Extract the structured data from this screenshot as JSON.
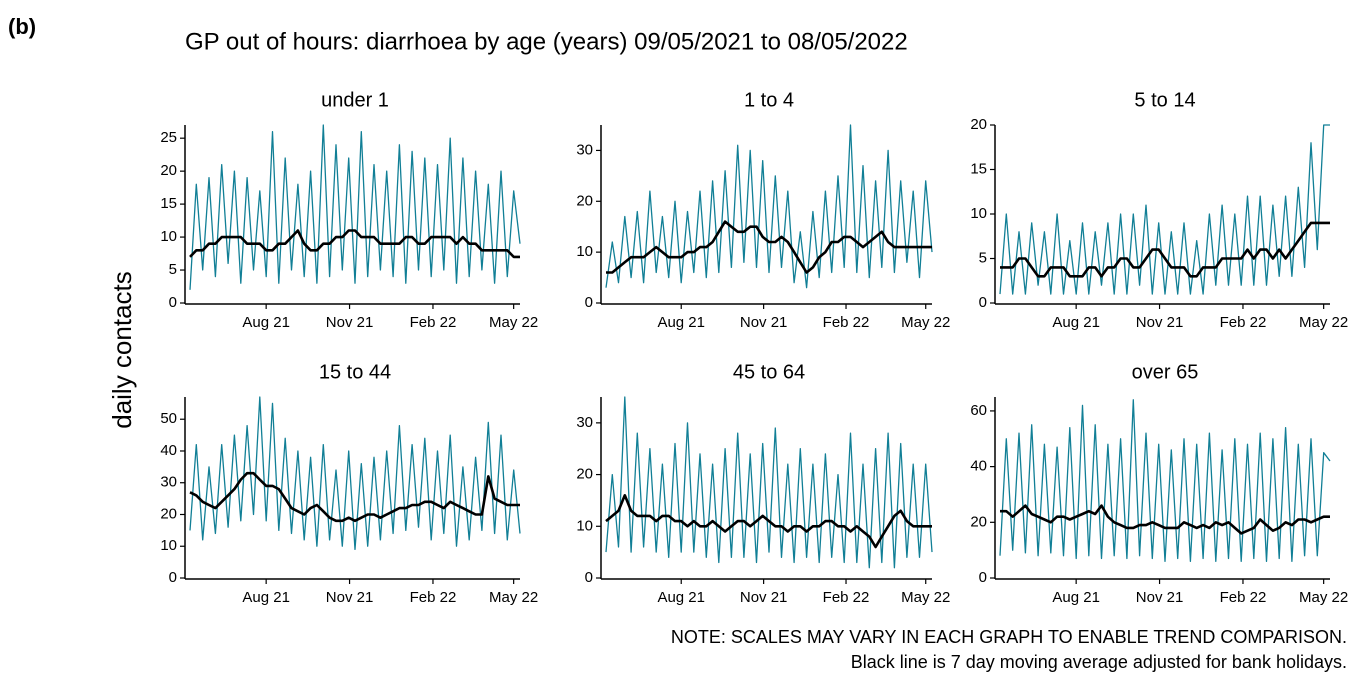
{
  "chart_data": {
    "type": "line",
    "tag": "(b)",
    "title": "GP out of hours: diarrhoea by age (years) 09/05/2021 to 08/05/2022",
    "ylabel": "daily contacts",
    "notes": [
      "NOTE: SCALES MAY VARY IN EACH GRAPH TO ENABLE TREND COMPARISON.",
      "Black line is 7 day moving average adjusted for bank holidays."
    ],
    "x": [
      "2021-05-09",
      "2021-05-16",
      "2021-05-23",
      "2021-05-30",
      "2021-06-06",
      "2021-06-13",
      "2021-06-20",
      "2021-06-27",
      "2021-07-04",
      "2021-07-11",
      "2021-07-18",
      "2021-07-25",
      "2021-08-01",
      "2021-08-08",
      "2021-08-15",
      "2021-08-22",
      "2021-08-29",
      "2021-09-05",
      "2021-09-12",
      "2021-09-19",
      "2021-09-26",
      "2021-10-03",
      "2021-10-10",
      "2021-10-17",
      "2021-10-24",
      "2021-10-31",
      "2021-11-07",
      "2021-11-14",
      "2021-11-21",
      "2021-11-28",
      "2021-12-05",
      "2021-12-12",
      "2021-12-19",
      "2021-12-26",
      "2022-01-02",
      "2022-01-09",
      "2022-01-16",
      "2022-01-23",
      "2022-01-30",
      "2022-02-06",
      "2022-02-13",
      "2022-02-20",
      "2022-02-27",
      "2022-03-06",
      "2022-03-13",
      "2022-03-20",
      "2022-03-27",
      "2022-04-03",
      "2022-04-10",
      "2022-04-17",
      "2022-04-24",
      "2022-05-01",
      "2022-05-08"
    ],
    "xlim": [
      "2021-05-09",
      "2022-05-08"
    ],
    "xticks": [
      {
        "value": "2021-08-01",
        "label": "Aug 21"
      },
      {
        "value": "2021-11-01",
        "label": "Nov 21"
      },
      {
        "value": "2022-02-01",
        "label": "Feb 22"
      },
      {
        "value": "2022-05-01",
        "label": "May 22"
      }
    ],
    "panels": [
      {
        "title": "under 1",
        "ylim": [
          0,
          27
        ],
        "yticks": [
          0,
          5,
          10,
          15,
          20,
          25
        ],
        "series": [
          {
            "color": "#117f96",
            "values": [
              2,
              18,
              5,
              19,
              4,
              21,
              6,
              20,
              3,
              19,
              5,
              17,
              4,
              26,
              3,
              22,
              5,
              18,
              4,
              20,
              3,
              27,
              4,
              24,
              5,
              22,
              3,
              26,
              4,
              21,
              5,
              20,
              4,
              24,
              3,
              23,
              5,
              22,
              4,
              21,
              5,
              25,
              3,
              22,
              4,
              20,
              5,
              18,
              3,
              20,
              4,
              17,
              9
            ]
          },
          {
            "color": "#000000",
            "values": [
              7,
              8,
              8,
              9,
              9,
              10,
              10,
              10,
              10,
              9,
              9,
              9,
              8,
              8,
              9,
              9,
              10,
              11,
              9,
              8,
              8,
              9,
              9,
              10,
              10,
              11,
              11,
              10,
              10,
              10,
              9,
              9,
              9,
              9,
              10,
              10,
              9,
              9,
              10,
              10,
              10,
              10,
              9,
              10,
              9,
              9,
              8,
              8,
              8,
              8,
              8,
              7,
              7
            ]
          }
        ]
      },
      {
        "title": "1 to 4",
        "ylim": [
          0,
          35
        ],
        "yticks": [
          0,
          10,
          20,
          30
        ],
        "series": [
          {
            "color": "#117f96",
            "values": [
              3,
              12,
              4,
              17,
              5,
              18,
              4,
              22,
              6,
              17,
              5,
              20,
              4,
              18,
              6,
              22,
              5,
              24,
              6,
              26,
              7,
              31,
              8,
              30,
              7,
              28,
              6,
              25,
              7,
              22,
              4,
              14,
              3,
              18,
              5,
              22,
              6,
              25,
              7,
              35,
              6,
              27,
              5,
              24,
              7,
              30,
              6,
              24,
              8,
              22,
              5,
              24,
              10
            ]
          },
          {
            "color": "#000000",
            "values": [
              6,
              6,
              7,
              8,
              9,
              9,
              9,
              10,
              11,
              10,
              9,
              9,
              9,
              10,
              10,
              11,
              11,
              12,
              14,
              16,
              15,
              14,
              14,
              15,
              15,
              13,
              12,
              12,
              13,
              12,
              10,
              8,
              6,
              7,
              9,
              10,
              12,
              12,
              13,
              13,
              12,
              11,
              12,
              13,
              14,
              12,
              11,
              11,
              11,
              11,
              11,
              11,
              11
            ]
          }
        ]
      },
      {
        "title": "5 to 14",
        "ylim": [
          0,
          20
        ],
        "yticks": [
          0,
          5,
          10,
          15,
          20
        ],
        "series": [
          {
            "color": "#117f96",
            "values": [
              1,
              10,
              1,
              8,
              1,
              9,
              2,
              8,
              1,
              10,
              1,
              7,
              1,
              9,
              1,
              8,
              2,
              9,
              1,
              10,
              1,
              10,
              2,
              11,
              1,
              9,
              1,
              8,
              1,
              9,
              1,
              7,
              1,
              10,
              2,
              11,
              2,
              10,
              2,
              12,
              2,
              12,
              2,
              11,
              3,
              12,
              3,
              13,
              4,
              18,
              6,
              20,
              20
            ]
          },
          {
            "color": "#000000",
            "values": [
              4,
              4,
              4,
              5,
              5,
              4,
              3,
              3,
              4,
              4,
              4,
              3,
              3,
              3,
              4,
              4,
              3,
              4,
              4,
              5,
              5,
              4,
              4,
              5,
              6,
              6,
              5,
              4,
              4,
              4,
              3,
              3,
              4,
              4,
              4,
              5,
              5,
              5,
              5,
              6,
              5,
              6,
              6,
              5,
              6,
              5,
              6,
              7,
              8,
              9,
              9,
              9,
              9
            ]
          }
        ]
      },
      {
        "title": "15 to 44",
        "ylim": [
          0,
          57
        ],
        "yticks": [
          0,
          10,
          20,
          30,
          40,
          50
        ],
        "series": [
          {
            "color": "#117f96",
            "values": [
              15,
              42,
              12,
              35,
              14,
              42,
              16,
              45,
              18,
              48,
              20,
              57,
              18,
              55,
              15,
              44,
              14,
              40,
              12,
              38,
              10,
              42,
              12,
              34,
              10,
              40,
              9,
              36,
              10,
              38,
              12,
              40,
              14,
              48,
              15,
              42,
              16,
              44,
              12,
              40,
              14,
              45,
              10,
              35,
              12,
              38,
              15,
              49,
              14,
              45,
              12,
              34,
              14
            ]
          },
          {
            "color": "#000000",
            "values": [
              27,
              26,
              24,
              23,
              22,
              24,
              26,
              28,
              31,
              33,
              33,
              31,
              29,
              29,
              28,
              25,
              22,
              21,
              20,
              22,
              23,
              21,
              19,
              18,
              18,
              19,
              18,
              19,
              20,
              20,
              19,
              20,
              21,
              22,
              22,
              23,
              23,
              24,
              24,
              23,
              22,
              24,
              23,
              22,
              21,
              20,
              20,
              32,
              25,
              24,
              23,
              23,
              23
            ]
          }
        ]
      },
      {
        "title": "45 to 64",
        "ylim": [
          0,
          35
        ],
        "yticks": [
          0,
          10,
          20,
          30
        ],
        "series": [
          {
            "color": "#117f96",
            "values": [
              5,
              20,
              6,
              35,
              5,
              28,
              6,
              25,
              5,
              22,
              4,
              26,
              5,
              30,
              5,
              24,
              4,
              22,
              3,
              25,
              4,
              28,
              4,
              24,
              3,
              26,
              5,
              29,
              4,
              22,
              3,
              25,
              4,
              22,
              3,
              24,
              4,
              20,
              3,
              28,
              3,
              22,
              2,
              25,
              3,
              28,
              2,
              26,
              4,
              22,
              4,
              22,
              5
            ]
          },
          {
            "color": "#000000",
            "values": [
              11,
              12,
              13,
              16,
              13,
              12,
              12,
              12,
              11,
              12,
              12,
              11,
              11,
              10,
              11,
              10,
              10,
              11,
              10,
              9,
              10,
              11,
              11,
              10,
              11,
              12,
              11,
              10,
              10,
              9,
              10,
              10,
              9,
              10,
              10,
              11,
              11,
              10,
              10,
              9,
              10,
              9,
              8,
              6,
              8,
              10,
              12,
              13,
              11,
              10,
              10,
              10,
              10
            ]
          }
        ]
      },
      {
        "title": "over 65",
        "ylim": [
          0,
          65
        ],
        "yticks": [
          0,
          20,
          40,
          60
        ],
        "series": [
          {
            "color": "#117f96",
            "values": [
              8,
              50,
              10,
              52,
              9,
              55,
              8,
              48,
              9,
              47,
              8,
              54,
              7,
              62,
              8,
              55,
              7,
              48,
              8,
              50,
              7,
              64,
              8,
              52,
              7,
              48,
              6,
              46,
              7,
              50,
              6,
              48,
              7,
              52,
              6,
              46,
              7,
              50,
              6,
              48,
              7,
              52,
              6,
              50,
              7,
              54,
              6,
              48,
              8,
              50,
              8,
              45,
              42
            ]
          },
          {
            "color": "#000000",
            "values": [
              24,
              24,
              22,
              24,
              26,
              23,
              22,
              21,
              20,
              22,
              22,
              21,
              22,
              23,
              24,
              23,
              26,
              22,
              20,
              19,
              18,
              18,
              19,
              19,
              20,
              19,
              18,
              18,
              18,
              20,
              19,
              18,
              19,
              18,
              20,
              19,
              20,
              18,
              16,
              17,
              18,
              21,
              19,
              17,
              18,
              20,
              19,
              21,
              21,
              20,
              21,
              22,
              22
            ]
          }
        ]
      }
    ]
  }
}
